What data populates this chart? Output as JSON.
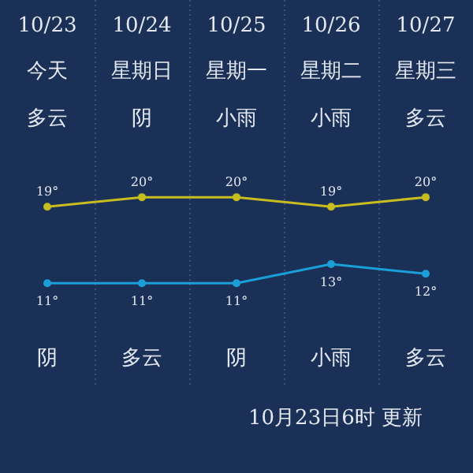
{
  "chart_data": {
    "type": "line",
    "categories": [
      "10/23",
      "10/24",
      "10/25",
      "10/26",
      "10/27"
    ],
    "series": [
      {
        "color": "#c8bd1e",
        "values": [
          19,
          20,
          20,
          19,
          20
        ],
        "value_labels": [
          "19°",
          "20°",
          "20°",
          "19°",
          "20°"
        ]
      },
      {
        "color": "#1a9fd8",
        "values": [
          11,
          11,
          11,
          13,
          12
        ],
        "value_labels": [
          "11°",
          "11°",
          "11°",
          "13°",
          "12°"
        ]
      }
    ],
    "marker": "circle",
    "annotations": [
      "今天",
      "星期日",
      "星期一",
      "星期二",
      "星期三",
      "多云",
      "阴",
      "小雨",
      "小雨",
      "多云",
      "阴",
      "多云",
      "阴",
      "小雨",
      "多云",
      "10月23日6时 更新"
    ]
  }
}
